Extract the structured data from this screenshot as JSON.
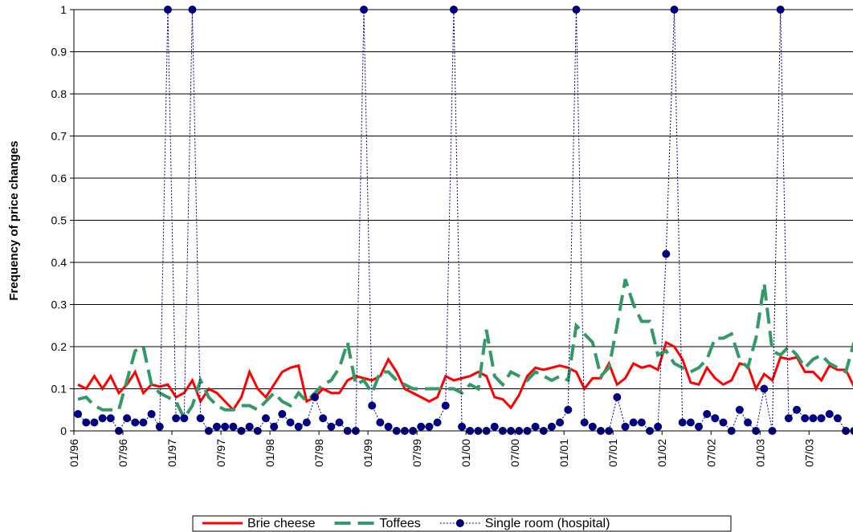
{
  "chart_data": {
    "type": "line",
    "y_label": "Frequency of price changes",
    "categories": [
      "01/96",
      null,
      null,
      null,
      null,
      null,
      "07/96",
      null,
      null,
      null,
      null,
      null,
      "01/97",
      null,
      null,
      null,
      null,
      null,
      "07/97",
      null,
      null,
      null,
      null,
      null,
      "01/98",
      null,
      null,
      null,
      null,
      null,
      "07/98",
      null,
      null,
      null,
      null,
      null,
      "01/99",
      null,
      null,
      null,
      null,
      null,
      "07/99",
      null,
      null,
      null,
      null,
      null,
      "01/00",
      null,
      null,
      null,
      null,
      null,
      "07/00",
      null,
      null,
      null,
      null,
      null,
      "01/01",
      null,
      null,
      null,
      null,
      null,
      "07/01",
      null,
      null,
      null,
      null,
      null,
      "01/02",
      null,
      null,
      null,
      null,
      null,
      "07/02",
      null,
      null,
      null,
      null,
      null,
      "01/03",
      null,
      null,
      null,
      null,
      null,
      "07/03",
      null,
      null,
      null,
      null,
      null
    ],
    "series": [
      {
        "name": "Brie cheese",
        "color": "#ff0000",
        "line_style": "solid",
        "values": [
          0.11,
          0.1,
          0.13,
          0.1,
          0.13,
          0.09,
          0.11,
          0.14,
          0.09,
          0.11,
          0.105,
          0.11,
          0.08,
          0.09,
          0.12,
          0.07,
          0.1,
          0.09,
          0.07,
          0.05,
          0.08,
          0.14,
          0.1,
          0.08,
          0.11,
          0.14,
          0.15,
          0.155,
          0.07,
          0.08,
          0.1,
          0.09,
          0.09,
          0.12,
          0.13,
          0.125,
          0.12,
          0.13,
          0.17,
          0.14,
          0.1,
          0.09,
          0.08,
          0.07,
          0.08,
          0.13,
          0.12,
          0.125,
          0.13,
          0.14,
          0.13,
          0.08,
          0.075,
          0.055,
          0.085,
          0.13,
          0.15,
          0.145,
          0.15,
          0.155,
          0.15,
          0.14,
          0.1,
          0.125,
          0.125,
          0.16,
          0.11,
          0.125,
          0.16,
          0.15,
          0.155,
          0.145,
          0.21,
          0.2,
          0.17,
          0.115,
          0.11,
          0.15,
          0.125,
          0.11,
          0.12,
          0.16,
          0.155,
          0.1,
          0.135,
          0.12,
          0.175,
          0.17,
          0.175,
          0.14,
          0.14,
          0.12,
          0.155,
          0.145,
          0.145,
          0.105
        ]
      },
      {
        "name": "Toffees",
        "color": "#339966",
        "line_style": "dashed",
        "values": [
          0.075,
          0.08,
          0.06,
          0.05,
          0.05,
          0.05,
          0.12,
          0.19,
          0.2,
          0.11,
          0.09,
          0.08,
          0.07,
          0.03,
          0.06,
          0.12,
          0.08,
          0.06,
          0.05,
          0.05,
          0.06,
          0.06,
          0.05,
          0.07,
          0.09,
          0.07,
          0.06,
          0.09,
          0.07,
          0.09,
          0.11,
          0.12,
          0.15,
          0.21,
          0.11,
          0.12,
          0.09,
          0.14,
          0.14,
          0.12,
          0.11,
          0.1,
          0.1,
          0.1,
          0.1,
          0.1,
          0.1,
          0.09,
          0.11,
          0.1,
          0.24,
          0.13,
          0.11,
          0.14,
          0.13,
          0.12,
          0.14,
          0.13,
          0.12,
          0.13,
          0.12,
          0.25,
          0.23,
          0.21,
          0.13,
          0.15,
          0.25,
          0.36,
          0.3,
          0.26,
          0.26,
          0.18,
          0.19,
          0.16,
          0.15,
          0.14,
          0.15,
          0.17,
          0.22,
          0.22,
          0.23,
          0.17,
          0.15,
          0.22,
          0.35,
          0.19,
          0.18,
          0.2,
          0.18,
          0.15,
          0.17,
          0.18,
          0.16,
          0.15,
          0.14,
          0.21
        ]
      },
      {
        "name": "Single room (hospital)",
        "color": "#000080",
        "line_style": "dotted",
        "marker": "circle",
        "values": [
          0.04,
          0.02,
          0.02,
          0.03,
          0.03,
          0,
          0.03,
          0.02,
          0.02,
          0.04,
          0.01,
          1,
          0.03,
          0.03,
          1,
          0.03,
          0,
          0.01,
          0.01,
          0.01,
          0,
          0.01,
          0,
          0.03,
          0.01,
          0.04,
          0.02,
          0.01,
          0.02,
          0.08,
          0.03,
          0.01,
          0.02,
          0,
          0,
          1,
          0.06,
          0.02,
          0.01,
          0,
          0,
          0,
          0.01,
          0.01,
          0.02,
          0.06,
          1,
          0.01,
          0,
          0,
          0,
          0.01,
          0,
          0,
          0,
          0,
          0.01,
          0,
          0.01,
          0.02,
          0.05,
          1,
          0.02,
          0.01,
          0,
          0,
          0.08,
          0.01,
          0.02,
          0.02,
          0,
          0.01,
          0.42,
          1,
          0.02,
          0.02,
          0.01,
          0.04,
          0.03,
          0.02,
          0,
          0.05,
          0.02,
          0,
          0.1,
          0,
          1,
          0.03,
          0.05,
          0.03,
          0.03,
          0.03,
          0.04,
          0.03,
          0,
          0
        ]
      }
    ],
    "ylim": [
      0,
      1
    ],
    "yticks": [
      0,
      0.1,
      0.2,
      0.3,
      0.4,
      0.5,
      0.6,
      0.7,
      0.8,
      0.9,
      1
    ],
    "grid": true,
    "legend": "bottom"
  }
}
